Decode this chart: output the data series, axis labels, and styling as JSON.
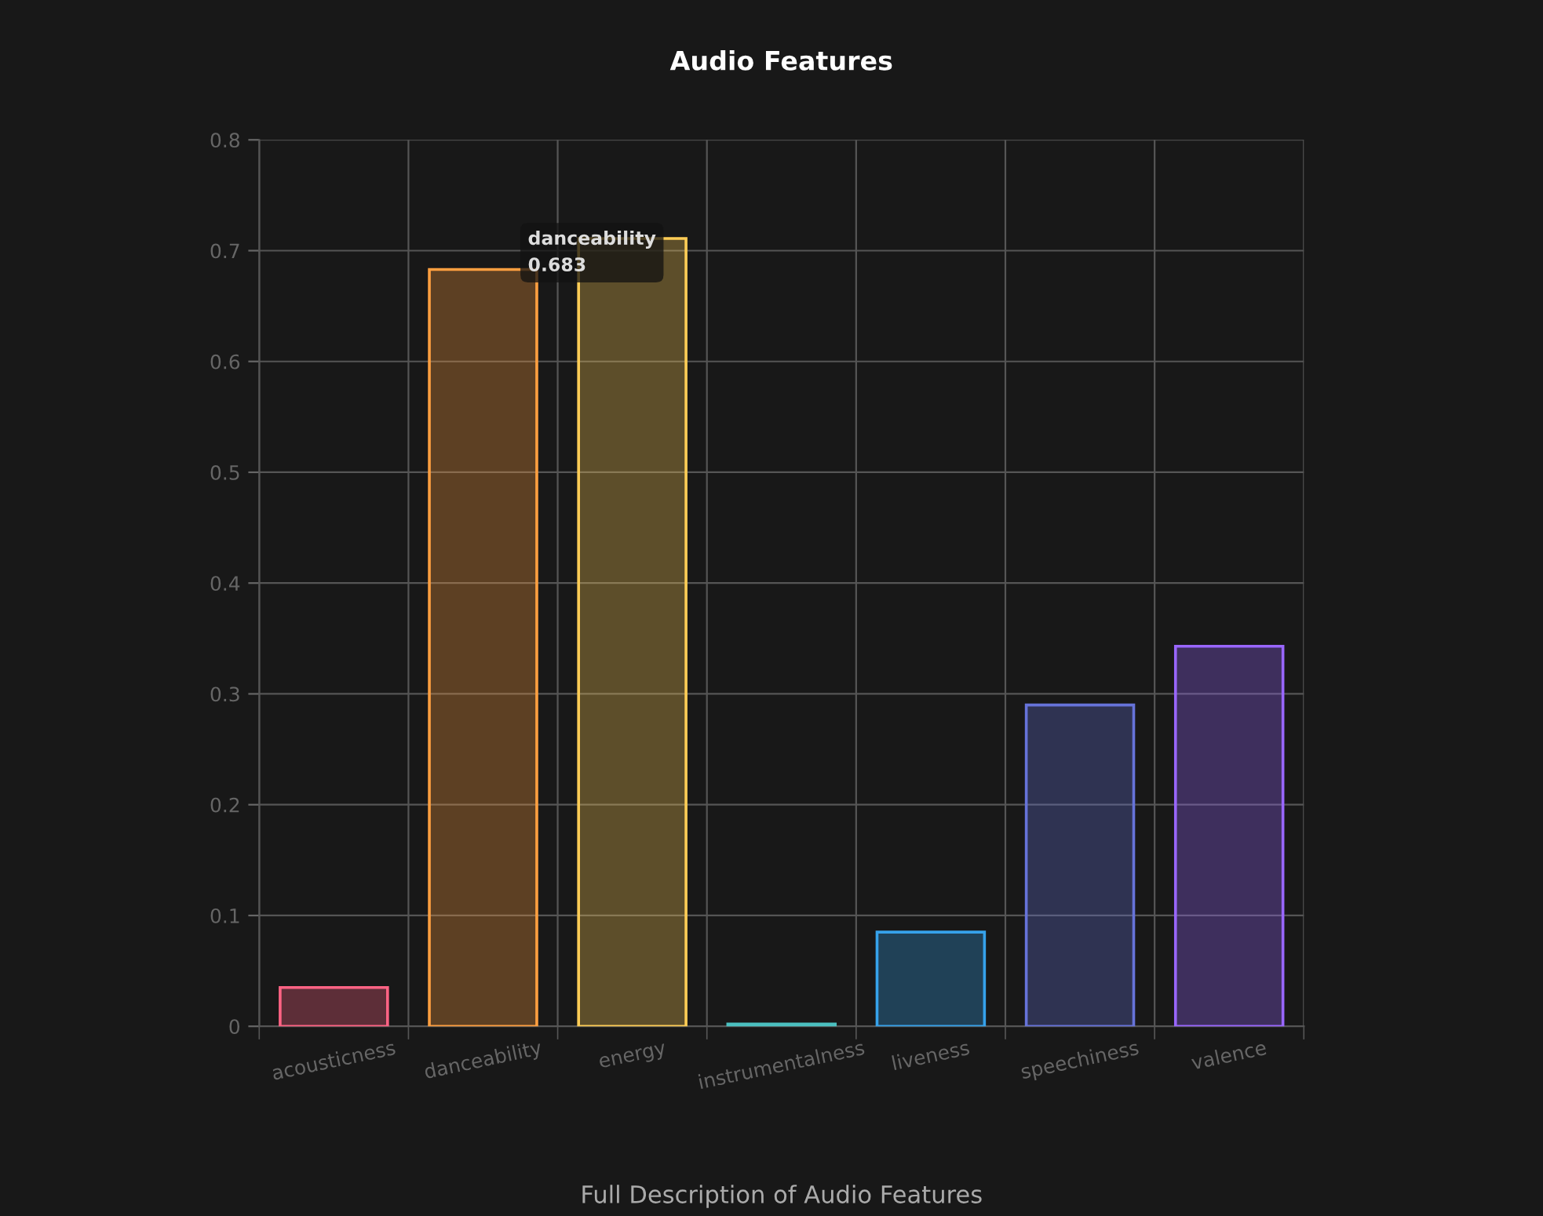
{
  "chart_data": {
    "type": "bar",
    "title": "Audio Features",
    "xlabel": "Full Description of Audio Features",
    "categories": [
      "acousticness",
      "danceability",
      "energy",
      "instrumentalness",
      "liveness",
      "speechiness",
      "valence"
    ],
    "values": [
      0.035,
      0.683,
      0.711,
      0.002,
      0.085,
      0.29,
      0.343
    ],
    "colors": [
      "#ff6384",
      "#ff9f40",
      "#ffcd56",
      "#4bc0c0",
      "#36a2eb",
      "#6673d9",
      "#9966ff"
    ],
    "ylim": [
      0,
      0.8
    ],
    "yticks": [
      {
        "value": 0,
        "label": "0"
      },
      0.1,
      0.2,
      0.3,
      0.4,
      0.5,
      0.6,
      0.7,
      0.8
    ],
    "grid": true,
    "annotations": [
      {
        "text": "danceability\n0.683",
        "x": "danceability",
        "y": 0.683
      }
    ]
  }
}
